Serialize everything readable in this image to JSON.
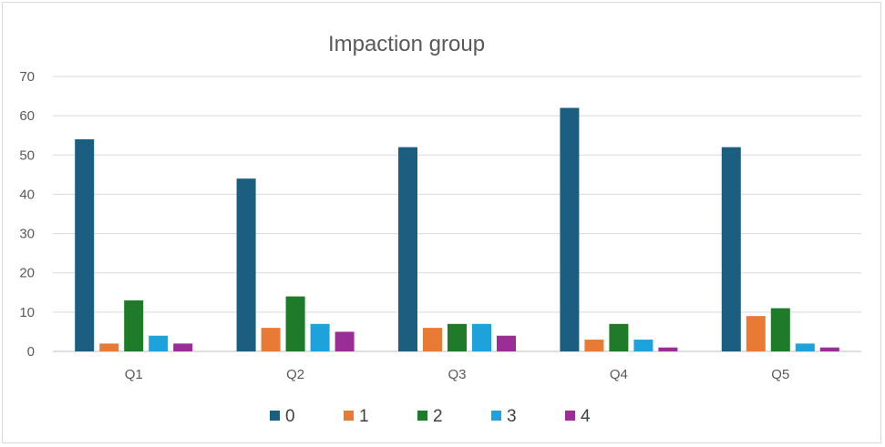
{
  "chart_data": {
    "type": "bar",
    "title": "Impaction group",
    "xlabel": "",
    "ylabel": "",
    "categories": [
      "Q1",
      "Q2",
      "Q3",
      "Q4",
      "Q5"
    ],
    "ylim": [
      0,
      70
    ],
    "yticks": [
      "0",
      "10",
      "20",
      "30",
      "40",
      "50",
      "60",
      "70"
    ],
    "grid": true,
    "legend_position": "bottom",
    "series": [
      {
        "name": "0",
        "color": "#1b5e80",
        "values": [
          54,
          44,
          52,
          62,
          52
        ]
      },
      {
        "name": "1",
        "color": "#e97a35",
        "values": [
          2,
          6,
          6,
          3,
          9
        ]
      },
      {
        "name": "2",
        "color": "#1f7a2a",
        "values": [
          13,
          14,
          7,
          7,
          11
        ]
      },
      {
        "name": "3",
        "color": "#1ea2dc",
        "values": [
          4,
          7,
          7,
          3,
          2
        ]
      },
      {
        "name": "4",
        "color": "#9b2d96",
        "values": [
          2,
          5,
          4,
          1,
          1
        ]
      }
    ]
  }
}
